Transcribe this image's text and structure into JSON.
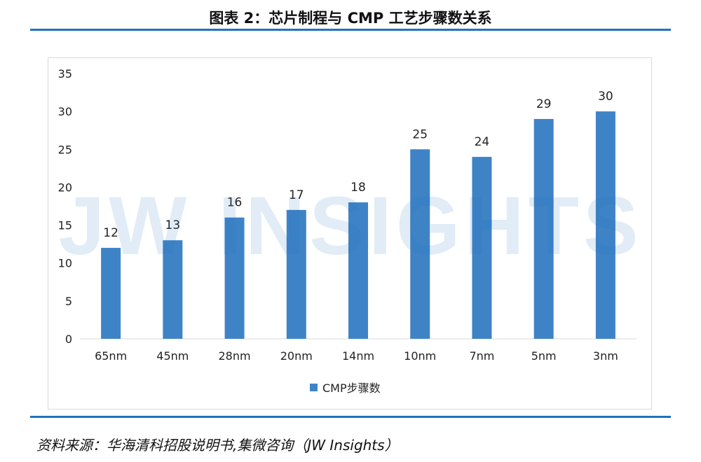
{
  "header": {
    "title": "图表 2：芯片制程与 CMP 工艺步骤数关系"
  },
  "watermark": "JW INSIGHTS",
  "footer": {
    "source": "资料来源：华海清科招股说明书,集微咨询（JW Insights）"
  },
  "colors": {
    "accent": "#1e73be",
    "bar": "#3f83c7"
  },
  "chart_data": {
    "type": "bar",
    "title": "",
    "xlabel": "",
    "ylabel": "",
    "categories": [
      "65nm",
      "45nm",
      "28nm",
      "20nm",
      "14nm",
      "10nm",
      "7nm",
      "5nm",
      "3nm"
    ],
    "series": [
      {
        "name": "CMP步骤数",
        "values": [
          12,
          13,
          16,
          17,
          18,
          25,
          24,
          29,
          30
        ]
      }
    ],
    "ylim": [
      0,
      35
    ],
    "yticks": [
      0,
      5,
      10,
      15,
      20,
      25,
      30,
      35
    ],
    "data_labels": true,
    "grid": false,
    "legend": "bottom"
  }
}
